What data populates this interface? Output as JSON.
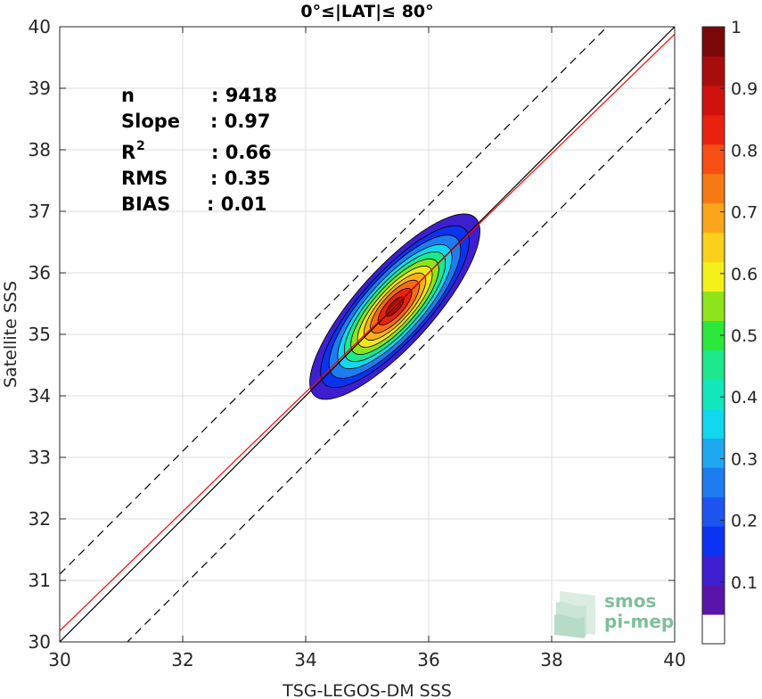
{
  "chart_data": {
    "type": "contour",
    "title": "0°≤|LAT|≤ 80°",
    "xlabel": "TSG-LEGOS-DM SSS",
    "ylabel": "Satellite SSS",
    "xlim": [
      30,
      40
    ],
    "ylim": [
      30,
      40
    ],
    "xticks": [
      "30",
      "32",
      "34",
      "36",
      "38",
      "40"
    ],
    "yticks": [
      "30",
      "31",
      "32",
      "33",
      "34",
      "35",
      "36",
      "37",
      "38",
      "39",
      "40"
    ],
    "grid": true,
    "lines": [
      {
        "id": "identity",
        "color": "#000000",
        "style": "solid",
        "slope": 1.0,
        "intercept": 0.0
      },
      {
        "id": "regression",
        "color": "#ff0000",
        "style": "solid",
        "slope": 0.97,
        "intercept": 1.08
      },
      {
        "id": "upper-bound",
        "color": "#000000",
        "style": "dashed",
        "slope": 1.0,
        "intercept": 1.1
      },
      {
        "id": "lower-bound",
        "color": "#000000",
        "style": "dashed",
        "slope": 1.0,
        "intercept": -1.1
      }
    ],
    "density_contours": {
      "center": [
        35.45,
        35.45
      ],
      "angle_deg": 48,
      "levels": [
        {
          "value": 0.05,
          "a": 1.95,
          "b": 0.62,
          "color": "#3d1fd0"
        },
        {
          "value": 0.15,
          "a": 1.7,
          "b": 0.55,
          "color": "#0b32f0"
        },
        {
          "value": 0.25,
          "a": 1.5,
          "b": 0.5,
          "color": "#1e7cf0"
        },
        {
          "value": 0.35,
          "a": 1.3,
          "b": 0.44,
          "color": "#11d8ee"
        },
        {
          "value": 0.45,
          "a": 1.15,
          "b": 0.39,
          "color": "#1ee88c"
        },
        {
          "value": 0.55,
          "a": 1.0,
          "b": 0.34,
          "color": "#8fe31b"
        },
        {
          "value": 0.65,
          "a": 0.85,
          "b": 0.29,
          "color": "#f3e61a"
        },
        {
          "value": 0.7,
          "a": 0.7,
          "b": 0.245,
          "color": "#fbb11a"
        },
        {
          "value": 0.8,
          "a": 0.55,
          "b": 0.2,
          "color": "#f56c14"
        },
        {
          "value": 0.9,
          "a": 0.38,
          "b": 0.14,
          "color": "#e8220f"
        },
        {
          "value": 1.0,
          "a": 0.2,
          "b": 0.075,
          "color": "#a80d0d"
        }
      ]
    },
    "colorbar": {
      "range": [
        0,
        1
      ],
      "ticks": [
        "0.1",
        "0.2",
        "0.3",
        "0.4",
        "0.5",
        "0.6",
        "0.7",
        "0.8",
        "0.9",
        "1"
      ],
      "colors": [
        "#ffffff",
        "#5a14a8",
        "#3d1fd0",
        "#0b32f0",
        "#1e55f0",
        "#1e7cf0",
        "#1ea8f0",
        "#11d8ee",
        "#12e8bb",
        "#1ee88c",
        "#2be83a",
        "#8fe31b",
        "#f3f01a",
        "#fbd01a",
        "#fba51a",
        "#f57a14",
        "#f54f14",
        "#e8220f",
        "#d0120f",
        "#a80d0d",
        "#7a0808"
      ]
    }
  },
  "stats": [
    {
      "label": "n",
      "value": ": 9418"
    },
    {
      "label": "Slope",
      "value": ": 0.97"
    },
    {
      "label": "R",
      "sup": "2",
      "value": ": 0.66"
    },
    {
      "label": "RMS",
      "value": ": 0.35"
    },
    {
      "label": "BIAS",
      "value": ": 0.01"
    }
  ],
  "watermark": {
    "line1": "smos",
    "line2": "pi-mep",
    "color": "#7fbf9a"
  }
}
